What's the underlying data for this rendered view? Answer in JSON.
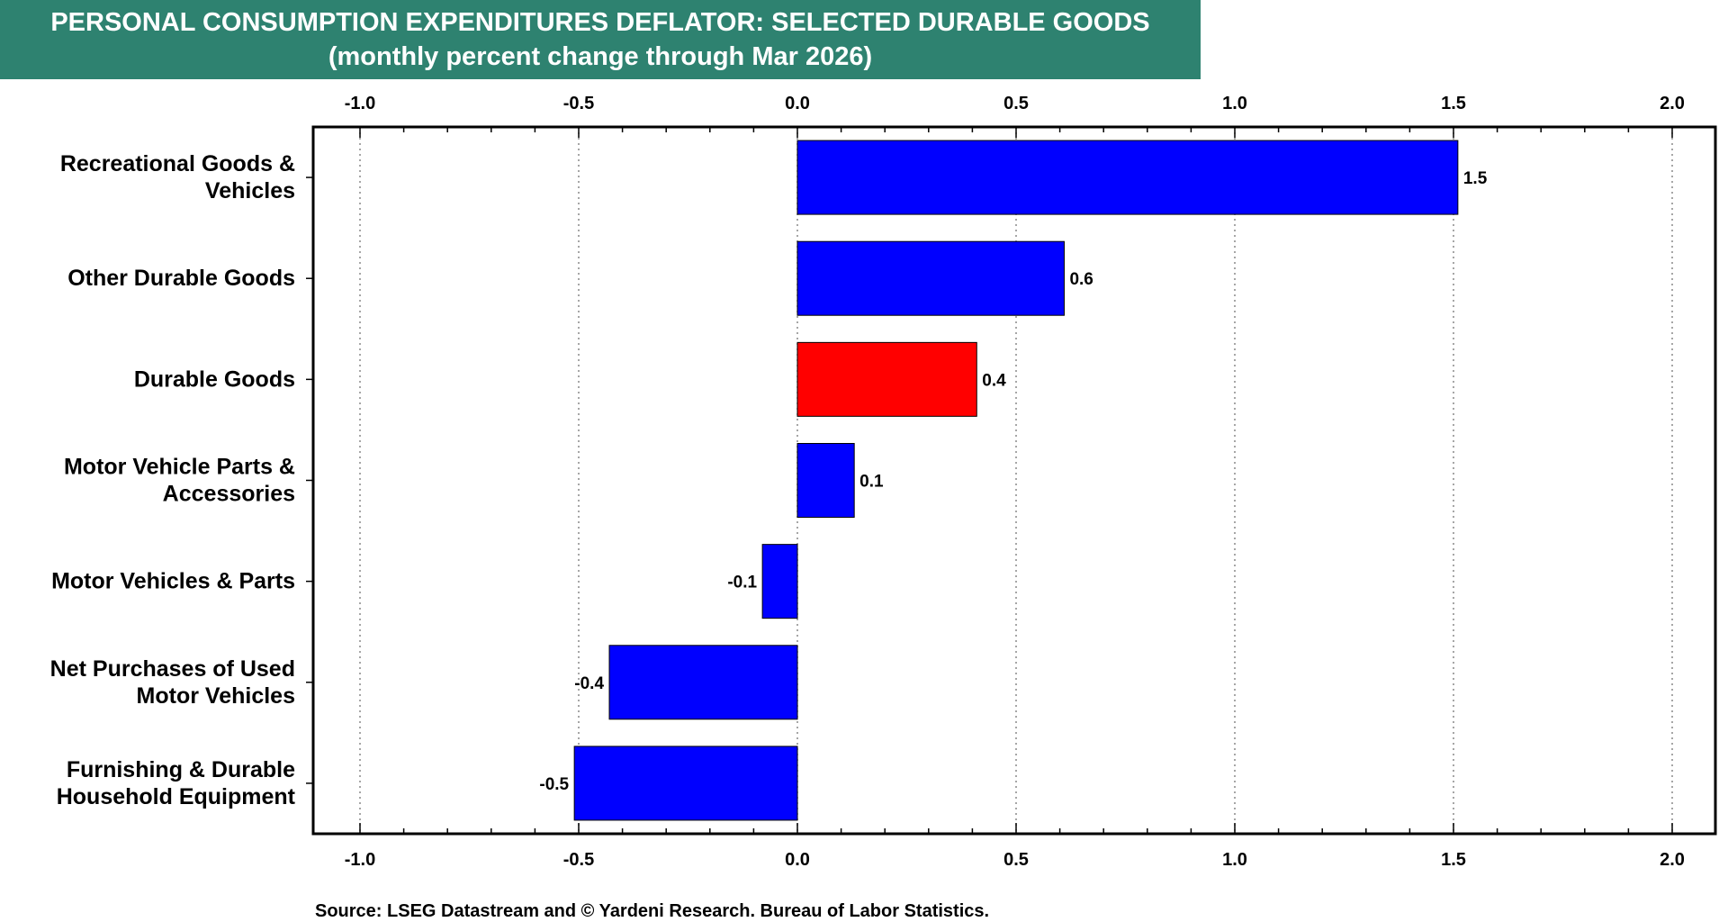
{
  "header": {
    "title": "PERSONAL CONSUMPTION EXPENDITURES DEFLATOR: SELECTED DURABLE GOODS",
    "subtitle": "(monthly percent change through Mar 2026)"
  },
  "footer": {
    "source": "Source: LSEG Datastream and © Yardeni Research. Bureau of Labor Statistics."
  },
  "colors": {
    "banner": "#2e8270",
    "bar_default": "#0000ff",
    "bar_highlight": "#ff0000",
    "grid": "#888888"
  },
  "chart_data": {
    "type": "bar",
    "orientation": "horizontal",
    "title": "PERSONAL CONSUMPTION EXPENDITURES DEFLATOR: SELECTED DURABLE GOODS",
    "subtitle": "(monthly percent change through Mar 2026)",
    "xlim": [
      -1.0,
      2.0
    ],
    "x_ticks": [
      -1.0,
      -0.5,
      0.0,
      0.5,
      1.0,
      1.5,
      2.0
    ],
    "x_tick_labels": [
      "-1.0",
      "-0.5",
      "0.0",
      "0.5",
      "1.0",
      "1.5",
      "2.0"
    ],
    "grid": "vertical-dotted",
    "categories": [
      [
        "Recreational Goods &",
        "Vehicles"
      ],
      [
        "Other Durable Goods"
      ],
      [
        "Durable Goods"
      ],
      [
        "Motor Vehicle Parts &",
        "Accessories"
      ],
      [
        "Motor Vehicles & Parts"
      ],
      [
        "Net Purchases of Used",
        "Motor Vehicles"
      ],
      [
        "Furnishing & Durable",
        "Household Equipment"
      ]
    ],
    "values": [
      1.51,
      0.61,
      0.41,
      0.13,
      -0.08,
      -0.43,
      -0.51
    ],
    "data_labels": [
      "1.5",
      "0.6",
      "0.4",
      "0.1",
      "-0.1",
      "-0.4",
      "-0.5"
    ],
    "highlight_index": 2
  }
}
